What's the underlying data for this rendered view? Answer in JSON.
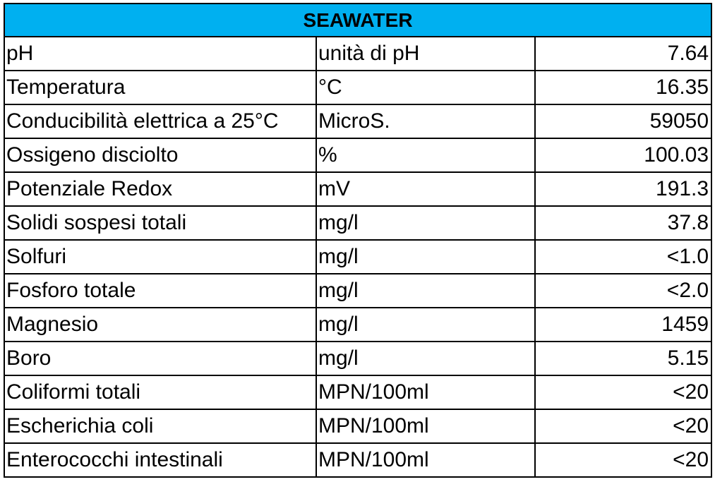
{
  "table": {
    "title": "SEAWATER",
    "header_color": "#00b0f0",
    "rows": [
      {
        "parameter": "pH",
        "unit": "unità di pH",
        "value": "7.64"
      },
      {
        "parameter": "Temperatura",
        "unit": "°C",
        "value": "16.35"
      },
      {
        "parameter": "Conducibilità elettrica a 25°C",
        "unit": "MicroS.",
        "value": "59050"
      },
      {
        "parameter": "Ossigeno disciolto",
        "unit": "%",
        "value": "100.03"
      },
      {
        "parameter": "Potenziale Redox",
        "unit": "mV",
        "value": "191.3"
      },
      {
        "parameter": "Solidi sospesi totali",
        "unit": "mg/l",
        "value": "37.8"
      },
      {
        "parameter": "Solfuri",
        "unit": "mg/l",
        "value": "<1.0"
      },
      {
        "parameter": "Fosforo totale",
        "unit": "mg/l",
        "value": "<2.0"
      },
      {
        "parameter": "Magnesio",
        "unit": "mg/l",
        "value": "1459"
      },
      {
        "parameter": "Boro",
        "unit": "mg/l",
        "value": "5.15"
      },
      {
        "parameter": "Coliformi totali",
        "unit": "MPN/100ml",
        "value": "<20"
      },
      {
        "parameter": "Escherichia coli",
        "unit": "MPN/100ml",
        "value": "<20"
      },
      {
        "parameter": "Enterococchi intestinali",
        "unit": "MPN/100ml",
        "value": "<20"
      }
    ]
  }
}
